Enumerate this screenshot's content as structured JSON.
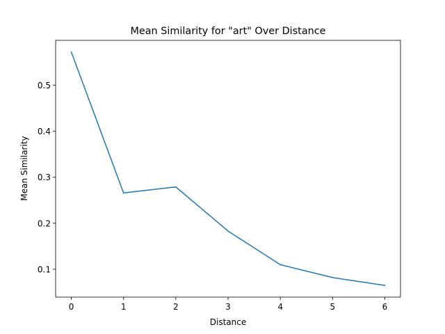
{
  "chart_data": {
    "type": "line",
    "title": "Mean Similarity for \"art\" Over Distance",
    "xlabel": "Distance",
    "ylabel": "Mean Similarity",
    "x": [
      0,
      1,
      2,
      3,
      4,
      5,
      6
    ],
    "series": [
      {
        "values": [
          0.572,
          0.266,
          0.279,
          0.183,
          0.11,
          0.082,
          0.065
        ],
        "color": "#1f77b4"
      }
    ],
    "xlim": [
      -0.3,
      6.3
    ],
    "ylim": [
      0.0395,
      0.5975
    ],
    "xticks": [
      0,
      1,
      2,
      3,
      4,
      5,
      6
    ],
    "xtick_labels": [
      "0",
      "1",
      "2",
      "3",
      "4",
      "5",
      "6"
    ],
    "yticks": [
      0.1,
      0.2,
      0.3,
      0.4,
      0.5
    ],
    "ytick_labels": [
      "0.1",
      "0.2",
      "0.3",
      "0.4",
      "0.5"
    ],
    "grid": false,
    "legend": "none"
  }
}
